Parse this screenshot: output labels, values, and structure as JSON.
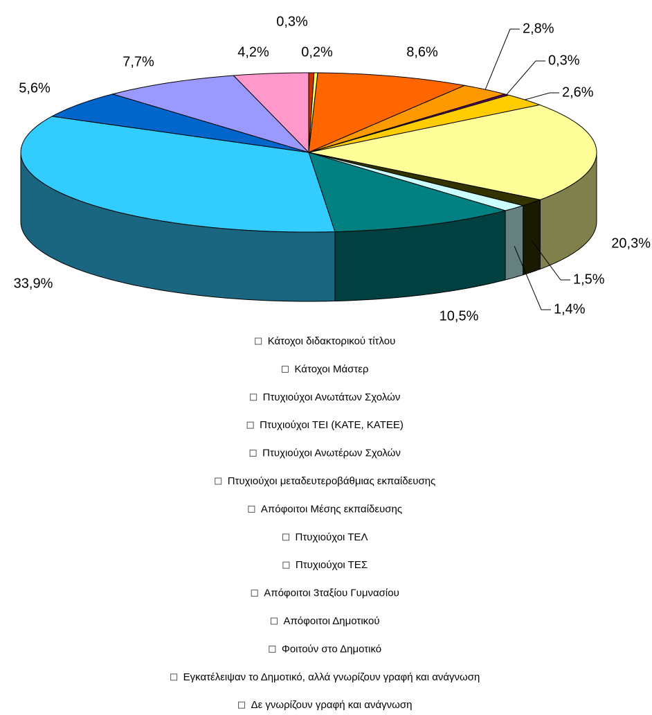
{
  "chart_data": {
    "type": "pie",
    "categories": [
      "Κάτοχοι διδακτορικού τίτλου",
      "Κάτοχοι Μάστερ",
      "Πτυχιούχοι Ανωτάτων Σχολών",
      "Πτυχιούχοι ΤΕΙ (ΚΑΤΕ, ΚΑΤΕΕ)",
      "Πτυχιούχοι Ανωτέρων Σχολών",
      "Πτυχιούχοι μεταδευτεροβάθμιας εκπαίδευσης",
      "Απόφοιτοι Μέσης εκπαίδευσης",
      "Πτυχιούχοι ΤΕΛ",
      "Πτυχιούχοι ΤΕΣ",
      "Απόφοιτοι 3ταξίου Γυμνασίου",
      "Απόφοιτοι Δημοτικού",
      "Φοιτούν στο Δημοτικό",
      "Εγκατέλειψαν το Δημοτικό, αλλά γνωρίζουν γραφή και ανάγνωση",
      "Δε γνωρίζουν γραφή και ανάγνωση"
    ],
    "values": [
      0.3,
      0.2,
      8.6,
      2.8,
      0.3,
      2.6,
      20.3,
      1.5,
      1.4,
      10.5,
      33.9,
      5.6,
      7.7,
      4.2
    ],
    "value_labels": [
      "0,3%",
      "0,2%",
      "8,6%",
      "2,8%",
      "0,3%",
      "2,6%",
      "20,3%",
      "1,5%",
      "1,4%",
      "10,5%",
      "33,9%",
      "5,6%",
      "7,7%",
      "4,2%"
    ],
    "colors": [
      "#cc3300",
      "#ffff66",
      "#ff6600",
      "#ff9900",
      "#660066",
      "#ffcc00",
      "#ffff99",
      "#333300",
      "#ccffff",
      "#008080",
      "#33ccff",
      "#0066cc",
      "#9999ff",
      "#ff99cc"
    ],
    "legend": "bottom",
    "three_d": true
  }
}
